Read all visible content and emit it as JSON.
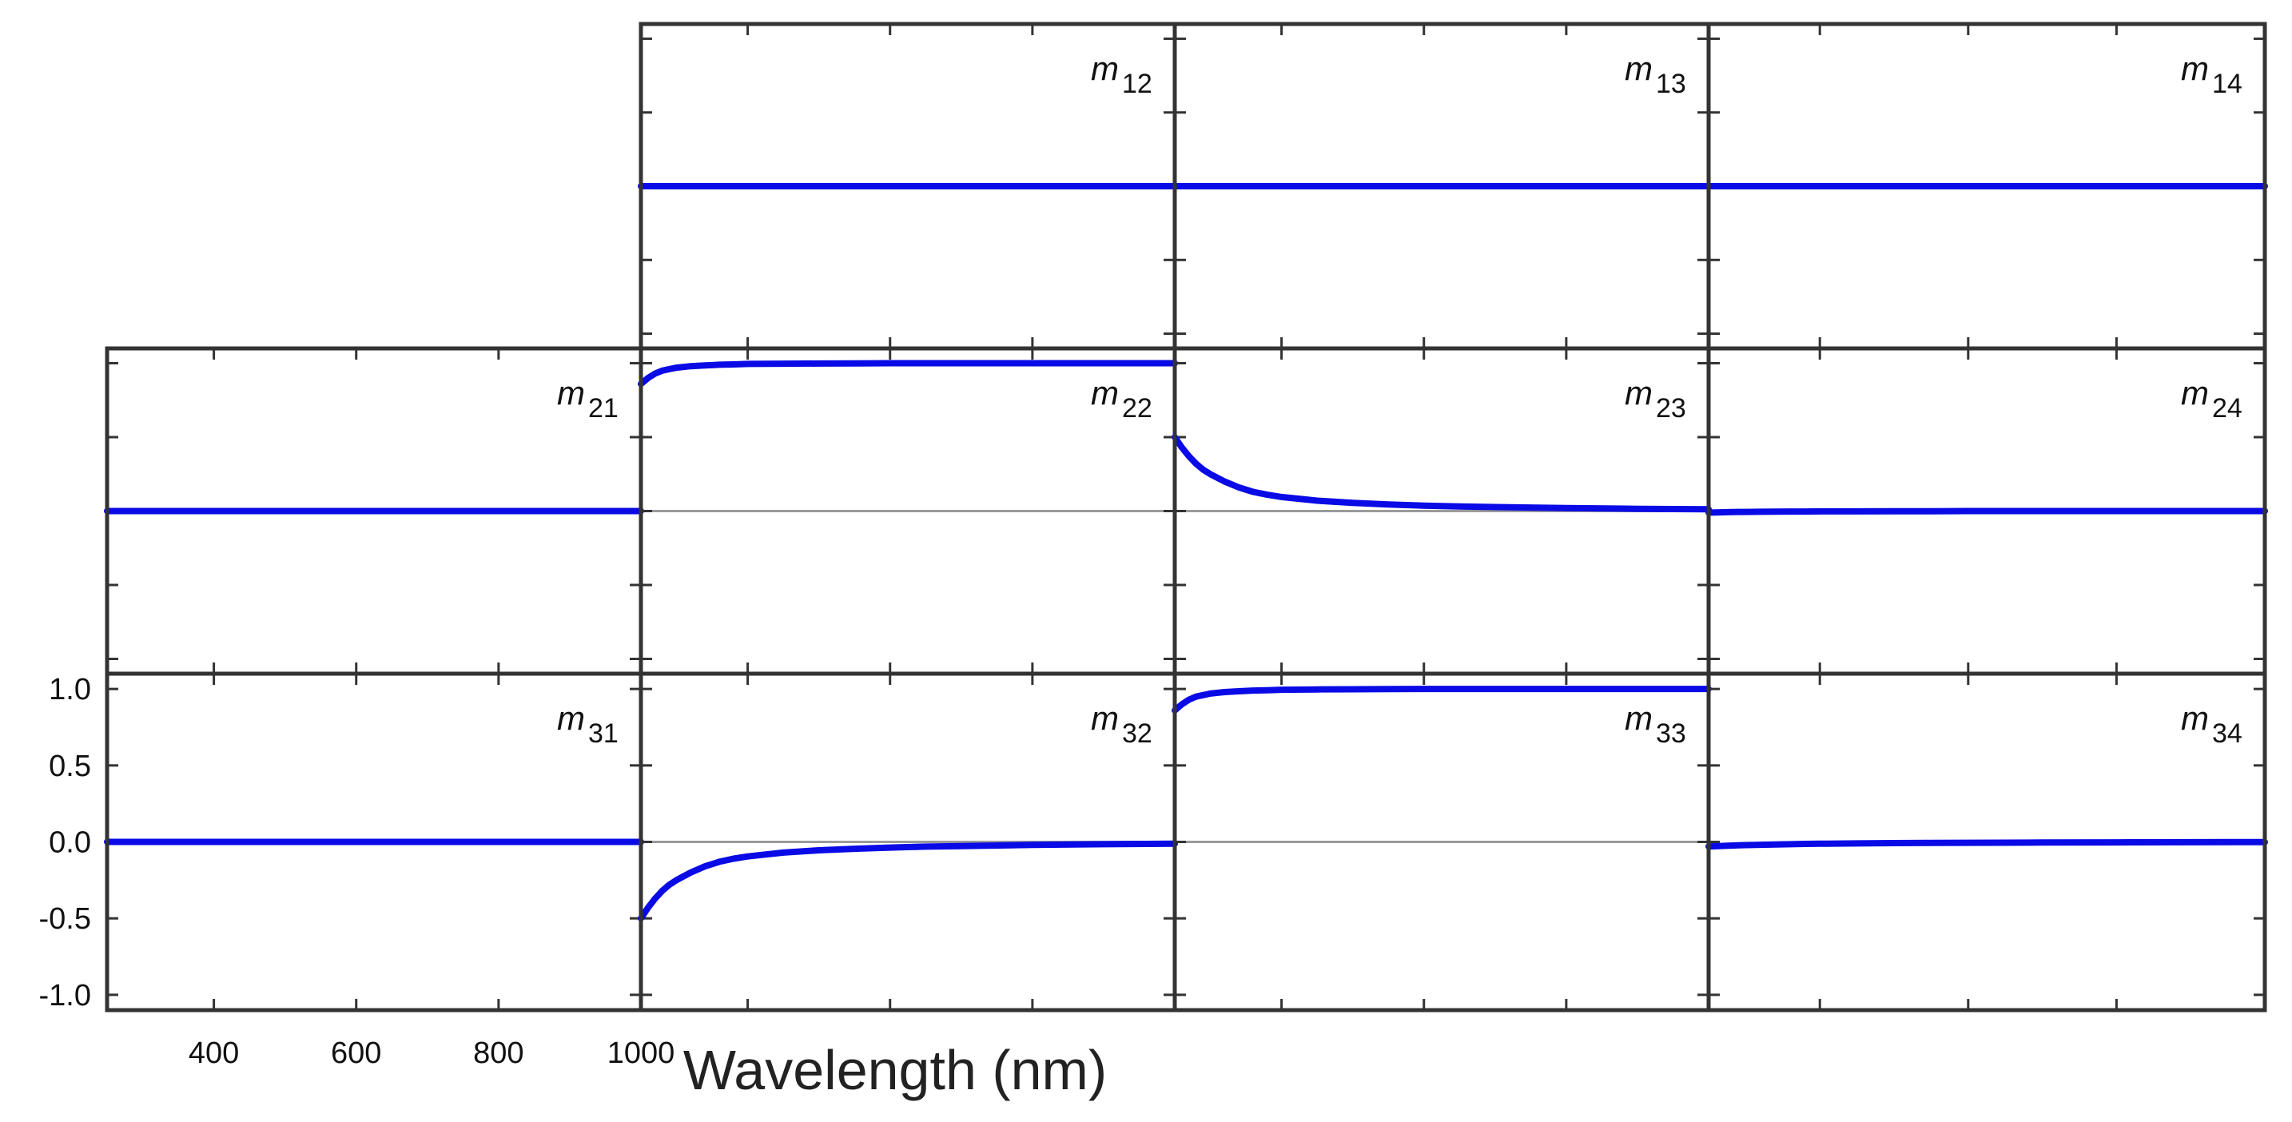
{
  "chart_data": {
    "type": "line",
    "title": "",
    "xlabel": "Wavelength (nm)",
    "ylabel": "",
    "xlim": [
      250,
      1000
    ],
    "ylim": [
      -1.1,
      1.1
    ],
    "x_ticks": [
      400,
      600,
      800,
      1000
    ],
    "y_ticks": [
      1.0,
      0.5,
      0.0,
      -0.5,
      -1.0
    ],
    "y_tick_labels": [
      "1.0",
      "0.5",
      "0.0",
      "-0.5",
      "-1.0"
    ],
    "x_tick_labels": [
      "400",
      "600",
      "800",
      "1000"
    ],
    "x": [
      250,
      260,
      270,
      280,
      290,
      300,
      320,
      340,
      360,
      380,
      400,
      450,
      500,
      550,
      600,
      650,
      700,
      800,
      900,
      1000
    ],
    "panels": [
      {
        "row": 1,
        "col": 2,
        "label": "m",
        "sub": "12",
        "values": [
          0,
          0,
          0,
          0,
          0,
          0,
          0,
          0,
          0,
          0,
          0,
          0,
          0,
          0,
          0,
          0,
          0,
          0,
          0,
          0
        ]
      },
      {
        "row": 1,
        "col": 3,
        "label": "m",
        "sub": "13",
        "values": [
          0,
          0,
          0,
          0,
          0,
          0,
          0,
          0,
          0,
          0,
          0,
          0,
          0,
          0,
          0,
          0,
          0,
          0,
          0,
          0
        ]
      },
      {
        "row": 1,
        "col": 4,
        "label": "m",
        "sub": "14",
        "values": [
          0,
          0,
          0,
          0,
          0,
          0,
          0,
          0,
          0,
          0,
          0,
          0,
          0,
          0,
          0,
          0,
          0,
          0,
          0,
          0
        ]
      },
      {
        "row": 2,
        "col": 1,
        "label": "m",
        "sub": "21",
        "values": [
          0,
          0,
          0,
          0,
          0,
          0,
          0,
          0,
          0,
          0,
          0,
          0,
          0,
          0,
          0,
          0,
          0,
          0,
          0,
          0
        ]
      },
      {
        "row": 2,
        "col": 2,
        "label": "m",
        "sub": "22",
        "values": [
          0.86,
          0.9,
          0.93,
          0.95,
          0.96,
          0.97,
          0.98,
          0.985,
          0.99,
          0.992,
          0.995,
          0.997,
          0.998,
          0.999,
          1.0,
          1.0,
          1.0,
          1.0,
          1.0,
          1.0
        ]
      },
      {
        "row": 2,
        "col": 3,
        "label": "m",
        "sub": "23",
        "values": [
          0.5,
          0.43,
          0.37,
          0.32,
          0.28,
          0.25,
          0.2,
          0.16,
          0.13,
          0.11,
          0.095,
          0.07,
          0.055,
          0.045,
          0.037,
          0.031,
          0.027,
          0.02,
          0.015,
          0.012
        ]
      },
      {
        "row": 2,
        "col": 4,
        "label": "m",
        "sub": "24",
        "values": [
          -0.01,
          -0.009,
          -0.008,
          -0.007,
          -0.006,
          -0.006,
          -0.005,
          -0.004,
          -0.003,
          -0.003,
          -0.002,
          -0.002,
          -0.001,
          -0.001,
          0,
          0,
          0,
          0,
          0,
          0
        ]
      },
      {
        "row": 3,
        "col": 1,
        "label": "m",
        "sub": "31",
        "values": [
          0,
          0,
          0,
          0,
          0,
          0,
          0,
          0,
          0,
          0,
          0,
          0,
          0,
          0,
          0,
          0,
          0,
          0,
          0,
          0
        ]
      },
      {
        "row": 3,
        "col": 2,
        "label": "m",
        "sub": "32",
        "values": [
          -0.5,
          -0.43,
          -0.37,
          -0.32,
          -0.28,
          -0.25,
          -0.2,
          -0.16,
          -0.13,
          -0.11,
          -0.095,
          -0.07,
          -0.055,
          -0.045,
          -0.037,
          -0.031,
          -0.027,
          -0.02,
          -0.015,
          -0.012
        ]
      },
      {
        "row": 3,
        "col": 3,
        "label": "m",
        "sub": "33",
        "values": [
          0.86,
          0.9,
          0.93,
          0.95,
          0.96,
          0.97,
          0.98,
          0.985,
          0.99,
          0.992,
          0.995,
          0.997,
          0.998,
          0.999,
          1.0,
          1.0,
          1.0,
          1.0,
          1.0,
          1.0
        ]
      },
      {
        "row": 3,
        "col": 4,
        "label": "m",
        "sub": "34",
        "values": [
          -0.03,
          -0.028,
          -0.026,
          -0.024,
          -0.022,
          -0.021,
          -0.019,
          -0.017,
          -0.015,
          -0.013,
          -0.012,
          -0.01,
          -0.008,
          -0.007,
          -0.006,
          -0.005,
          -0.004,
          -0.003,
          -0.002,
          -0.001
        ]
      }
    ],
    "zero_line_panels": [
      "22",
      "23",
      "32",
      "33"
    ],
    "grid": false,
    "colors": {
      "series": "#0a0ae6",
      "frame": "#333333",
      "zero_line": "#9a9a9a"
    }
  }
}
